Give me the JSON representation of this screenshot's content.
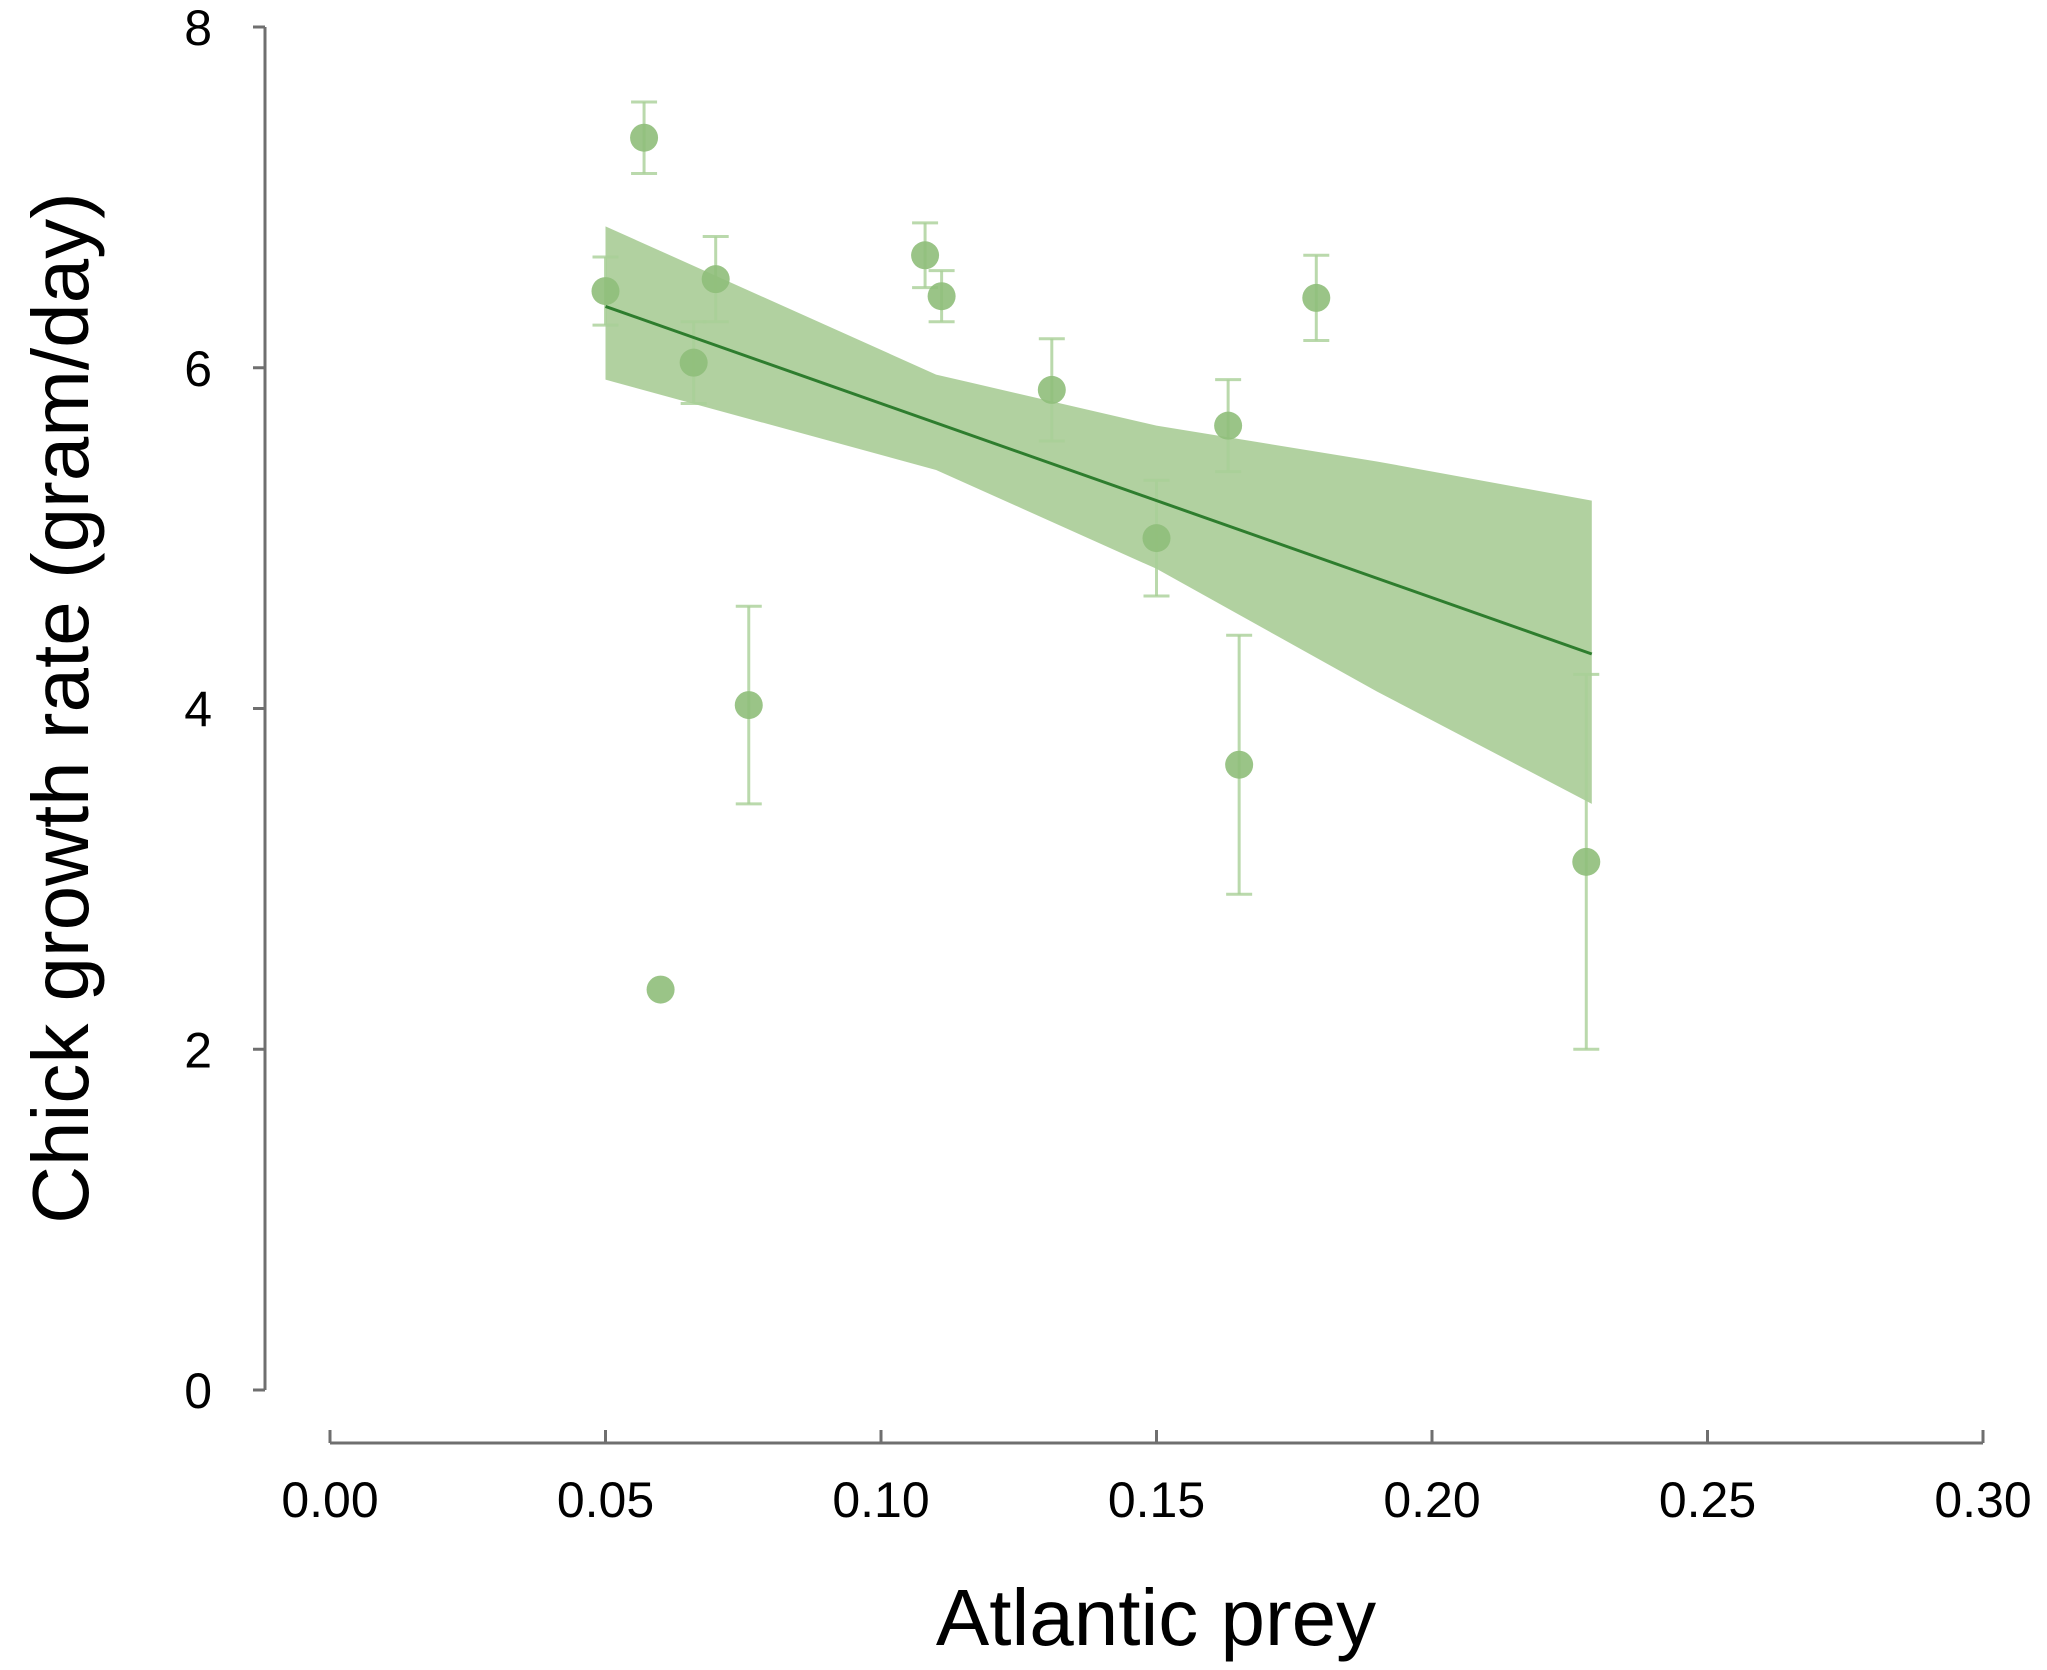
{
  "chart_data": {
    "type": "scatter",
    "xlabel": "Atlantic prey",
    "ylabel": "Chick growth rate (gram/day)",
    "xlim": [
      0.0,
      0.3
    ],
    "ylim": [
      0,
      8
    ],
    "x_ticks": [
      "0.00",
      "0.05",
      "0.10",
      "0.15",
      "0.20",
      "0.25",
      "0.30"
    ],
    "y_ticks": [
      "0",
      "2",
      "4",
      "6",
      "8"
    ],
    "grid": false,
    "colors": {
      "point": "#8fbe7a",
      "errorbar": "#a9cf97",
      "fit_line": "#2e7d2e",
      "confidence_band": "#a3c98f"
    },
    "points": [
      {
        "x": 0.05,
        "y": 6.45,
        "err": 0.2
      },
      {
        "x": 0.057,
        "y": 7.35,
        "err": 0.21
      },
      {
        "x": 0.06,
        "y": 2.35,
        "err": 0.0
      },
      {
        "x": 0.066,
        "y": 6.03,
        "err": 0.24
      },
      {
        "x": 0.07,
        "y": 6.52,
        "err": 0.25
      },
      {
        "x": 0.076,
        "y": 4.02,
        "err": 0.58
      },
      {
        "x": 0.108,
        "y": 6.66,
        "err": 0.19
      },
      {
        "x": 0.111,
        "y": 6.42,
        "err": 0.15
      },
      {
        "x": 0.131,
        "y": 5.87,
        "err": 0.3
      },
      {
        "x": 0.15,
        "y": 5.0,
        "err": 0.34
      },
      {
        "x": 0.163,
        "y": 5.66,
        "err": 0.27
      },
      {
        "x": 0.165,
        "y": 3.67,
        "err": 0.76
      },
      {
        "x": 0.179,
        "y": 6.41,
        "err": 0.25
      },
      {
        "x": 0.228,
        "y": 3.1,
        "err": 1.1
      }
    ],
    "fit": {
      "x": [
        0.05,
        0.229
      ],
      "y": [
        6.36,
        4.32
      ]
    },
    "confidence_band": {
      "x": [
        0.05,
        0.11,
        0.15,
        0.19,
        0.229
      ],
      "upper": [
        6.83,
        5.96,
        5.66,
        5.45,
        5.22
      ],
      "lower": [
        5.93,
        5.4,
        4.82,
        4.1,
        3.44
      ]
    }
  }
}
